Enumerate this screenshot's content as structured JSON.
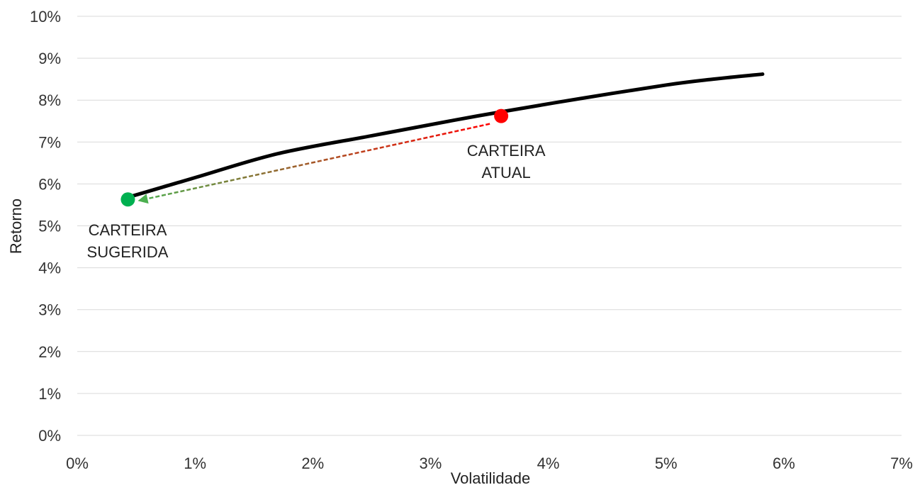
{
  "chart_data": {
    "type": "line",
    "xlabel": "Volatilidade",
    "ylabel": "Retorno",
    "xlim": [
      0,
      7
    ],
    "ylim": [
      0,
      10
    ],
    "x_ticks": [
      "0%",
      "1%",
      "2%",
      "3%",
      "4%",
      "5%",
      "6%",
      "7%"
    ],
    "y_ticks": [
      "0%",
      "1%",
      "2%",
      "3%",
      "4%",
      "5%",
      "6%",
      "7%",
      "8%",
      "9%",
      "10%"
    ],
    "grid": true,
    "series": [
      {
        "color": "#000000",
        "x": [
          0.43,
          1.0,
          1.7,
          2.5,
          3.2,
          3.6,
          4.3,
          5.0,
          5.4,
          5.82
        ],
        "y": [
          5.68,
          6.15,
          6.72,
          7.15,
          7.52,
          7.72,
          8.05,
          8.36,
          8.5,
          8.62
        ]
      }
    ],
    "points": [
      {
        "label_lines": [
          "CARTEIRA",
          "ATUAL"
        ],
        "x": 3.6,
        "y": 7.62,
        "color": "#ff0000"
      },
      {
        "label_lines": [
          "CARTEIRA",
          "SUGERIDA"
        ],
        "x": 0.43,
        "y": 5.63,
        "color": "#00b050"
      }
    ],
    "arrow": {
      "from_color": "#ff0000",
      "to_color": "#4caf50"
    }
  }
}
